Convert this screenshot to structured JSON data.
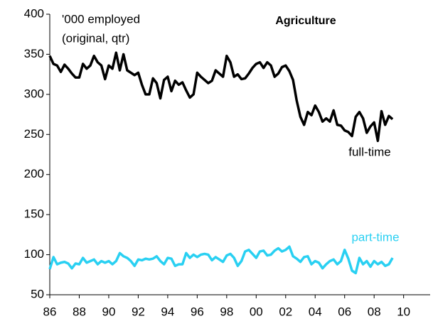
{
  "chart_data": {
    "type": "line",
    "title": "Agriculture",
    "annotations": [
      "'000 employed",
      "(original, qtr)"
    ],
    "x": [
      1986,
      1986.25,
      1986.5,
      1986.75,
      1987,
      1987.25,
      1987.5,
      1987.75,
      1988,
      1988.25,
      1988.5,
      1988.75,
      1989,
      1989.25,
      1989.5,
      1989.75,
      1990,
      1990.25,
      1990.5,
      1990.75,
      1991,
      1991.25,
      1991.5,
      1991.75,
      1992,
      1992.25,
      1992.5,
      1992.75,
      1993,
      1993.25,
      1993.5,
      1993.75,
      1994,
      1994.25,
      1994.5,
      1994.75,
      1995,
      1995.25,
      1995.5,
      1995.75,
      1996,
      1996.25,
      1996.5,
      1996.75,
      1997,
      1997.25,
      1997.5,
      1997.75,
      1998,
      1998.25,
      1998.5,
      1998.75,
      1999,
      1999.25,
      1999.5,
      1999.75,
      2000,
      2000.25,
      2000.5,
      2000.75,
      2001,
      2001.25,
      2001.5,
      2001.75,
      2002,
      2002.25,
      2002.5,
      2002.75,
      2003,
      2003.25,
      2003.5,
      2003.75,
      2004,
      2004.25,
      2004.5,
      2004.75,
      2005,
      2005.25,
      2005.5,
      2005.75,
      2006,
      2006.25,
      2006.5,
      2006.75,
      2007,
      2007.25,
      2007.5,
      2007.75,
      2008,
      2008.25,
      2008.5,
      2008.75,
      2009,
      2009.25
    ],
    "series": [
      {
        "name": "full-time",
        "color": "#000000",
        "values": [
          348,
          338,
          336,
          328,
          337,
          332,
          326,
          321,
          321,
          338,
          332,
          336,
          348,
          340,
          336,
          319,
          336,
          332,
          352,
          330,
          350,
          330,
          327,
          324,
          327,
          312,
          300,
          300,
          320,
          314,
          295,
          318,
          322,
          304,
          317,
          312,
          315,
          305,
          296,
          300,
          327,
          322,
          318,
          314,
          317,
          330,
          326,
          322,
          348,
          340,
          322,
          325,
          319,
          320,
          326,
          333,
          338,
          340,
          333,
          340,
          336,
          322,
          326,
          334,
          336,
          329,
          318,
          292,
          272,
          262,
          278,
          274,
          286,
          278,
          266,
          270,
          266,
          280,
          262,
          261,
          255,
          253,
          248,
          272,
          278,
          270,
          252,
          260,
          265,
          242,
          279,
          262,
          273,
          269
        ]
      },
      {
        "name": "part-time",
        "color": "#29d0f2",
        "values": [
          82,
          97,
          88,
          90,
          91,
          89,
          83,
          89,
          88,
          96,
          90,
          92,
          94,
          88,
          92,
          90,
          92,
          88,
          92,
          102,
          98,
          96,
          92,
          86,
          94,
          93,
          95,
          94,
          95,
          98,
          92,
          88,
          96,
          95,
          86,
          88,
          88,
          102,
          96,
          100,
          97,
          100,
          101,
          100,
          93,
          97,
          94,
          91,
          99,
          101,
          96,
          86,
          92,
          104,
          106,
          101,
          96,
          104,
          105,
          99,
          100,
          105,
          108,
          104,
          106,
          110,
          98,
          95,
          91,
          97,
          98,
          88,
          92,
          90,
          83,
          88,
          92,
          94,
          88,
          92,
          106,
          95,
          80,
          77,
          96,
          88,
          92,
          85,
          92,
          88,
          91,
          86,
          88,
          96
        ]
      }
    ],
    "xlim": [
      1986,
      2011.8
    ],
    "xticks": [
      {
        "value": 1986,
        "label": "86"
      },
      {
        "value": 1988,
        "label": "88"
      },
      {
        "value": 1990,
        "label": "90"
      },
      {
        "value": 1992,
        "label": "92"
      },
      {
        "value": 1994,
        "label": "94"
      },
      {
        "value": 1996,
        "label": "96"
      },
      {
        "value": 1998,
        "label": "98"
      },
      {
        "value": 2000,
        "label": "00"
      },
      {
        "value": 2002,
        "label": "02"
      },
      {
        "value": 2004,
        "label": "04"
      },
      {
        "value": 2006,
        "label": "06"
      },
      {
        "value": 2008,
        "label": "08"
      },
      {
        "value": 2010,
        "label": "10"
      }
    ],
    "ylim": [
      50,
      400
    ],
    "yticks": [
      50,
      100,
      150,
      200,
      250,
      300,
      350,
      400
    ]
  }
}
